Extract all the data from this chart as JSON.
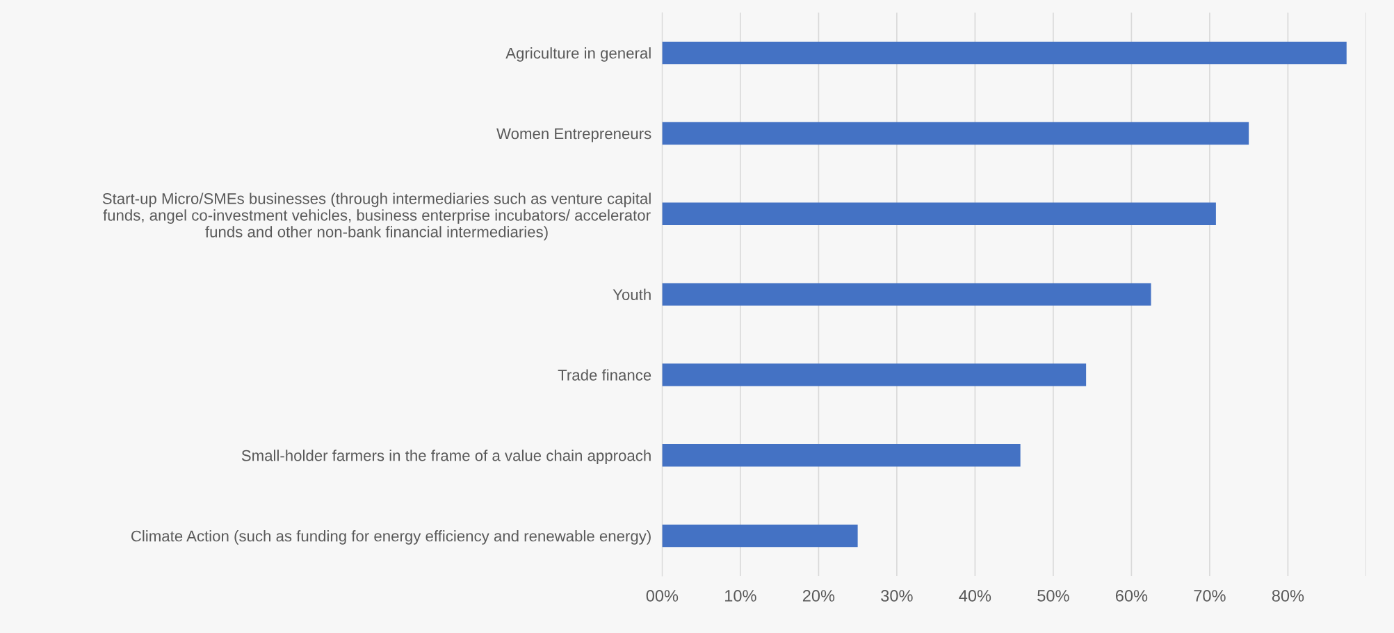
{
  "chart_data": {
    "type": "bar",
    "orientation": "horizontal",
    "categories": [
      "Agriculture in general",
      "Women Entrepreneurs",
      "Start-up Micro/SMEs businesses (through intermediaries such as venture capital\nfunds, angel co-investment vehicles, business enterprise incubators/ accelerator\nfunds and other non-bank financial intermediaries)",
      "Youth",
      "Trade finance",
      "Small-holder farmers in the frame of a value chain approach",
      "Climate Action (such as funding for energy efficiency and renewable energy)"
    ],
    "values": [
      87.5,
      75,
      70.8,
      62.5,
      54.2,
      45.8,
      25
    ],
    "color": "#4472c4",
    "xlim": [
      0,
      90
    ],
    "xticks": [
      {
        "value": 0,
        "label": "00%"
      },
      {
        "value": 10,
        "label": "10%"
      },
      {
        "value": 20,
        "label": "20%"
      },
      {
        "value": 30,
        "label": "30%"
      },
      {
        "value": 40,
        "label": "40%"
      },
      {
        "value": 50,
        "label": "50%"
      },
      {
        "value": 60,
        "label": "60%"
      },
      {
        "value": 70,
        "label": "70%"
      },
      {
        "value": 80,
        "label": "80%"
      },
      {
        "value": 90,
        "label": null
      }
    ],
    "grid": "x"
  }
}
